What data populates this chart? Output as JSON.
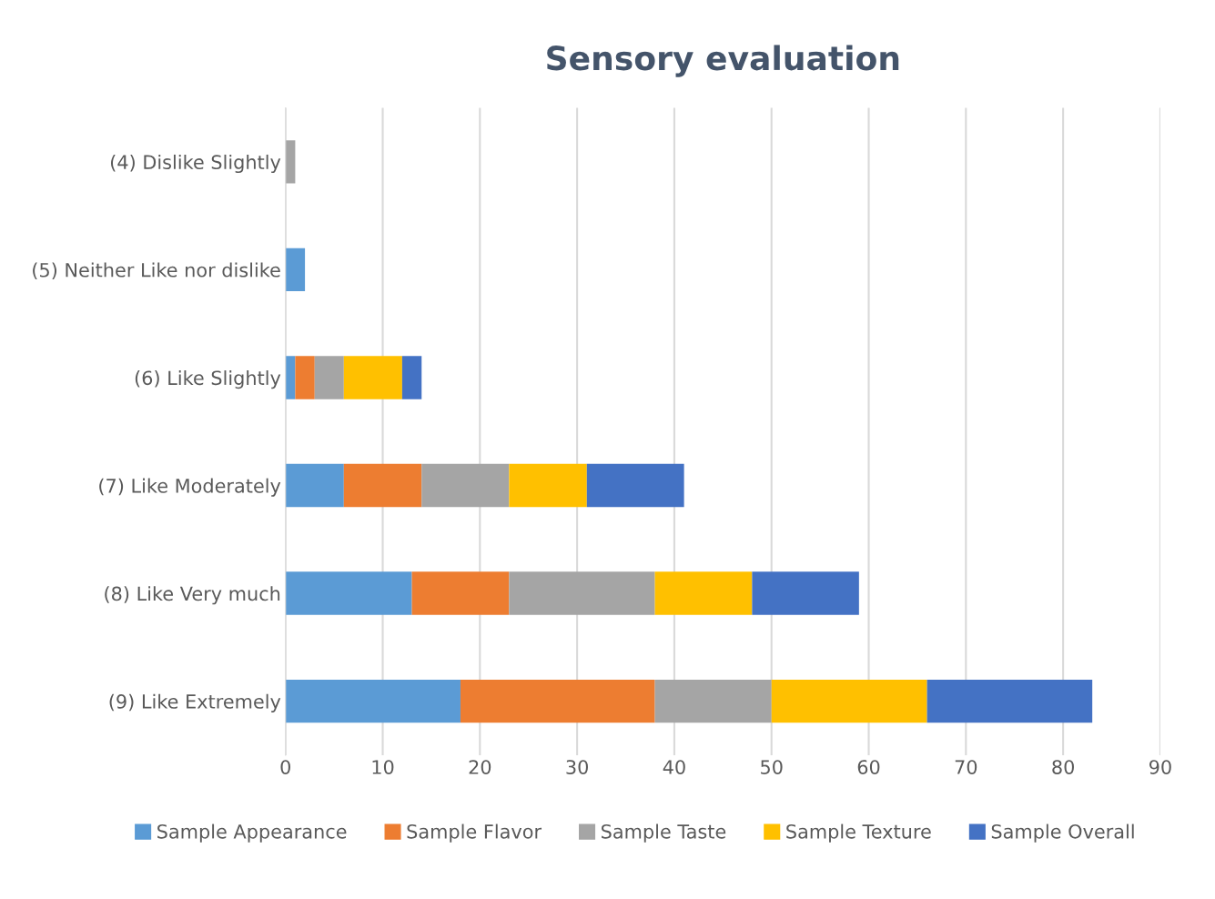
{
  "chart_data": {
    "type": "bar",
    "title": "Sensory evaluation",
    "orientation": "horizontal",
    "stacked": true,
    "categories": [
      "(4) Dislike Slightly",
      "(5) Neither Like nor dislike",
      "(6) Like Slightly",
      "(7) Like Moderately",
      "(8) Like Very much",
      "(9) Like Extremely"
    ],
    "series": [
      {
        "name": "Sample Appearance",
        "color": "#5b9bd5",
        "values": [
          null,
          2,
          1,
          6,
          13,
          18
        ]
      },
      {
        "name": "Sample Flavor",
        "color": "#ed7d31",
        "values": [
          null,
          null,
          2,
          8,
          10,
          20
        ]
      },
      {
        "name": "Sample Taste",
        "color": "#a5a5a5",
        "values": [
          1,
          null,
          3,
          9,
          15,
          12
        ]
      },
      {
        "name": "Sample Texture",
        "color": "#ffc000",
        "values": [
          null,
          null,
          6,
          8,
          10,
          16
        ]
      },
      {
        "name": "Sample Overall",
        "color": "#4472c4",
        "values": [
          null,
          null,
          2,
          10,
          11,
          17
        ]
      }
    ],
    "xlim": [
      0,
      90
    ],
    "xticks": [
      0,
      10,
      20,
      30,
      40,
      50,
      60,
      70,
      80,
      90
    ],
    "grid": "x",
    "legend": "bottom"
  }
}
